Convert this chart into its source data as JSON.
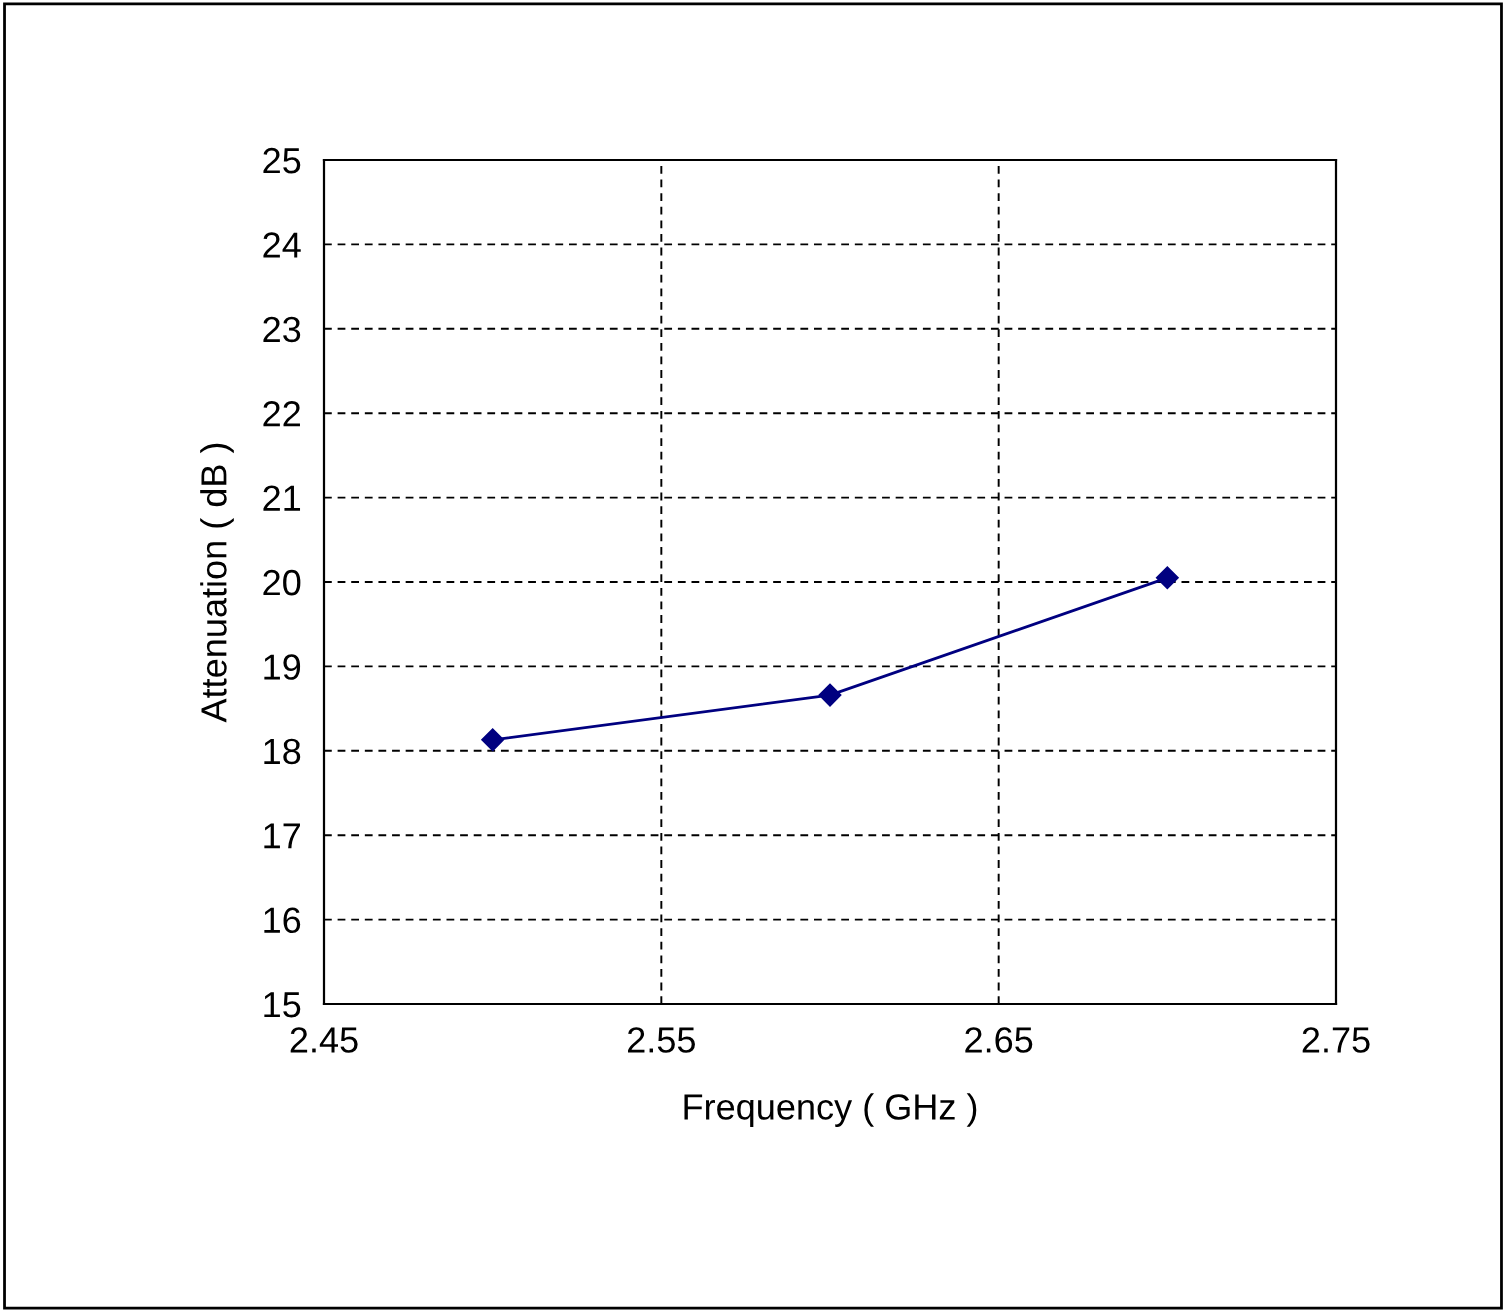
{
  "chart_data": {
    "type": "line",
    "xlabel": "Frequency ( GHz )",
    "ylabel": "Attenuation ( dB )",
    "x": [
      2.5,
      2.6,
      2.7
    ],
    "series": [
      {
        "color": "#000080",
        "values": [
          18.13,
          18.66,
          20.05
        ]
      }
    ],
    "xlim": [
      2.45,
      2.75
    ],
    "xticks": [
      {
        "value": 2.45,
        "label": "2.45"
      },
      {
        "value": 2.55,
        "label": "2.55"
      },
      {
        "value": 2.65,
        "label": "2.65"
      },
      {
        "value": 2.75,
        "label": "2.75"
      }
    ],
    "ylim": [
      15,
      25
    ],
    "yticks": [
      15,
      16,
      17,
      18,
      19,
      20,
      21,
      22,
      23,
      24,
      25
    ],
    "grid": true,
    "marker": "diamond",
    "line_style": "solid",
    "legend": false
  }
}
